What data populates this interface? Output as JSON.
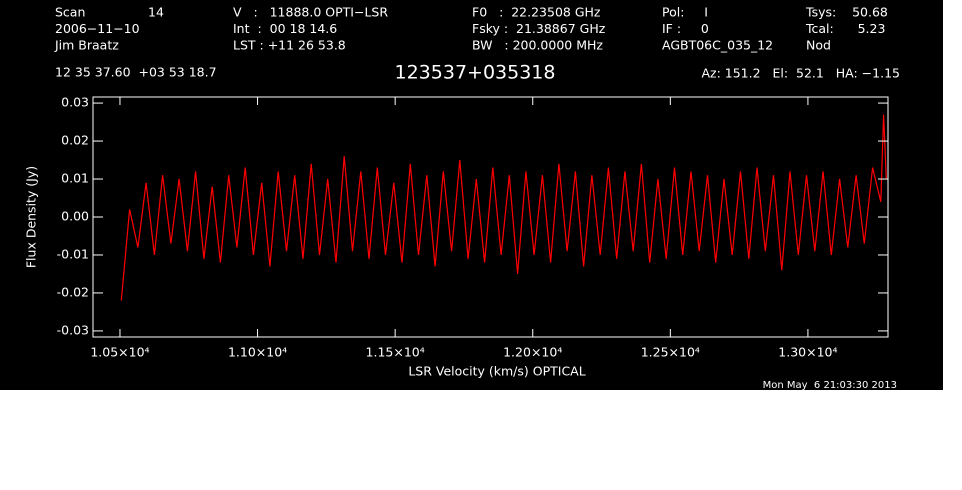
{
  "chart_data": {
    "type": "line",
    "header": [
      [
        "Scan",
        "14",
        "V   :   11888.0 OPTI−LSR",
        "F0   :  22.23508 GHz",
        "Pol:     I",
        "Tsys:    50.68"
      ],
      [
        "2006−11−10",
        "Int  :  00 18 14.6",
        "Fsky :  21.38867 GHz",
        "IF :     0",
        "Tcal:      5.23"
      ],
      [
        "Jim Braatz",
        "LST : +11 26 53.8",
        "BW   : 200.0000 MHz",
        "AGBT06C_035_12",
        "Nod"
      ]
    ],
    "coords": "12 35 37.60  +03 53 18.7",
    "title": "123537+035318",
    "pointing": "Az: 151.2   El:  52.1   HA: −1.15",
    "xlabel": "LSR Velocity (km/s) OPTICAL",
    "ylabel": "Flux Density (Jy)",
    "date": "Mon May  6 21:03:30 2013",
    "x": [
      10505,
      10535,
      10565,
      10595,
      10625,
      10655,
      10685,
      10715,
      10745,
      10775,
      10805,
      10835,
      10865,
      10895,
      10925,
      10955,
      10985,
      11015,
      11045,
      11075,
      11105,
      11135,
      11165,
      11195,
      11225,
      11255,
      11285,
      11315,
      11345,
      11375,
      11405,
      11435,
      11465,
      11495,
      11525,
      11555,
      11585,
      11615,
      11645,
      11675,
      11705,
      11735,
      11765,
      11795,
      11825,
      11855,
      11885,
      11915,
      11945,
      11975,
      12005,
      12035,
      12065,
      12095,
      12125,
      12155,
      12185,
      12215,
      12245,
      12275,
      12305,
      12335,
      12365,
      12395,
      12425,
      12455,
      12485,
      12515,
      12545,
      12575,
      12605,
      12635,
      12665,
      12695,
      12725,
      12755,
      12785,
      12815,
      12845,
      12875,
      12905,
      12935,
      12965,
      12995,
      13025,
      13055,
      13085,
      13115,
      13145,
      13175,
      13205,
      13235,
      13265,
      13275,
      13285
    ],
    "series": [
      {
        "color": "#ff0000",
        "values": [
          -0.022,
          0.002,
          -0.008,
          0.009,
          -0.01,
          0.011,
          -0.007,
          0.01,
          -0.009,
          0.012,
          -0.011,
          0.008,
          -0.012,
          0.011,
          -0.008,
          0.013,
          -0.01,
          0.009,
          -0.013,
          0.012,
          -0.009,
          0.011,
          -0.011,
          0.014,
          -0.01,
          0.01,
          -0.012,
          0.016,
          -0.009,
          0.012,
          -0.011,
          0.013,
          -0.01,
          0.009,
          -0.012,
          0.014,
          -0.01,
          0.011,
          -0.013,
          0.012,
          -0.009,
          0.015,
          -0.011,
          0.01,
          -0.012,
          0.013,
          -0.01,
          0.011,
          -0.015,
          0.012,
          -0.01,
          0.011,
          -0.012,
          0.014,
          -0.009,
          0.012,
          -0.013,
          0.011,
          -0.01,
          0.013,
          -0.011,
          0.012,
          -0.009,
          0.014,
          -0.012,
          0.01,
          -0.011,
          0.013,
          -0.01,
          0.012,
          -0.009,
          0.011,
          -0.012,
          0.01,
          -0.01,
          0.012,
          -0.011,
          0.013,
          -0.009,
          0.011,
          -0.014,
          0.012,
          -0.01,
          0.011,
          -0.009,
          0.012,
          -0.01,
          0.01,
          -0.008,
          0.011,
          -0.007,
          0.013,
          0.004,
          0.027,
          0.01
        ]
      }
    ],
    "xlim": [
      10402,
      13291
    ],
    "ylim": [
      -0.0316,
      0.0316
    ],
    "xticks": [
      {
        "value": 10500,
        "label": "1.05×10⁴"
      },
      {
        "value": 11000,
        "label": "1.10×10⁴"
      },
      {
        "value": 11500,
        "label": "1.15×10⁴"
      },
      {
        "value": 12000,
        "label": "1.20×10⁴"
      },
      {
        "value": 12500,
        "label": "1.25×10⁴"
      },
      {
        "value": 13000,
        "label": "1.30×10⁴"
      }
    ],
    "yticks": [
      -0.03,
      -0.02,
      -0.01,
      {
        "value": 0,
        "label": "0.00"
      },
      0.01,
      0.02,
      0.03
    ],
    "background": "#000000",
    "axis_color": "#ffffff"
  }
}
